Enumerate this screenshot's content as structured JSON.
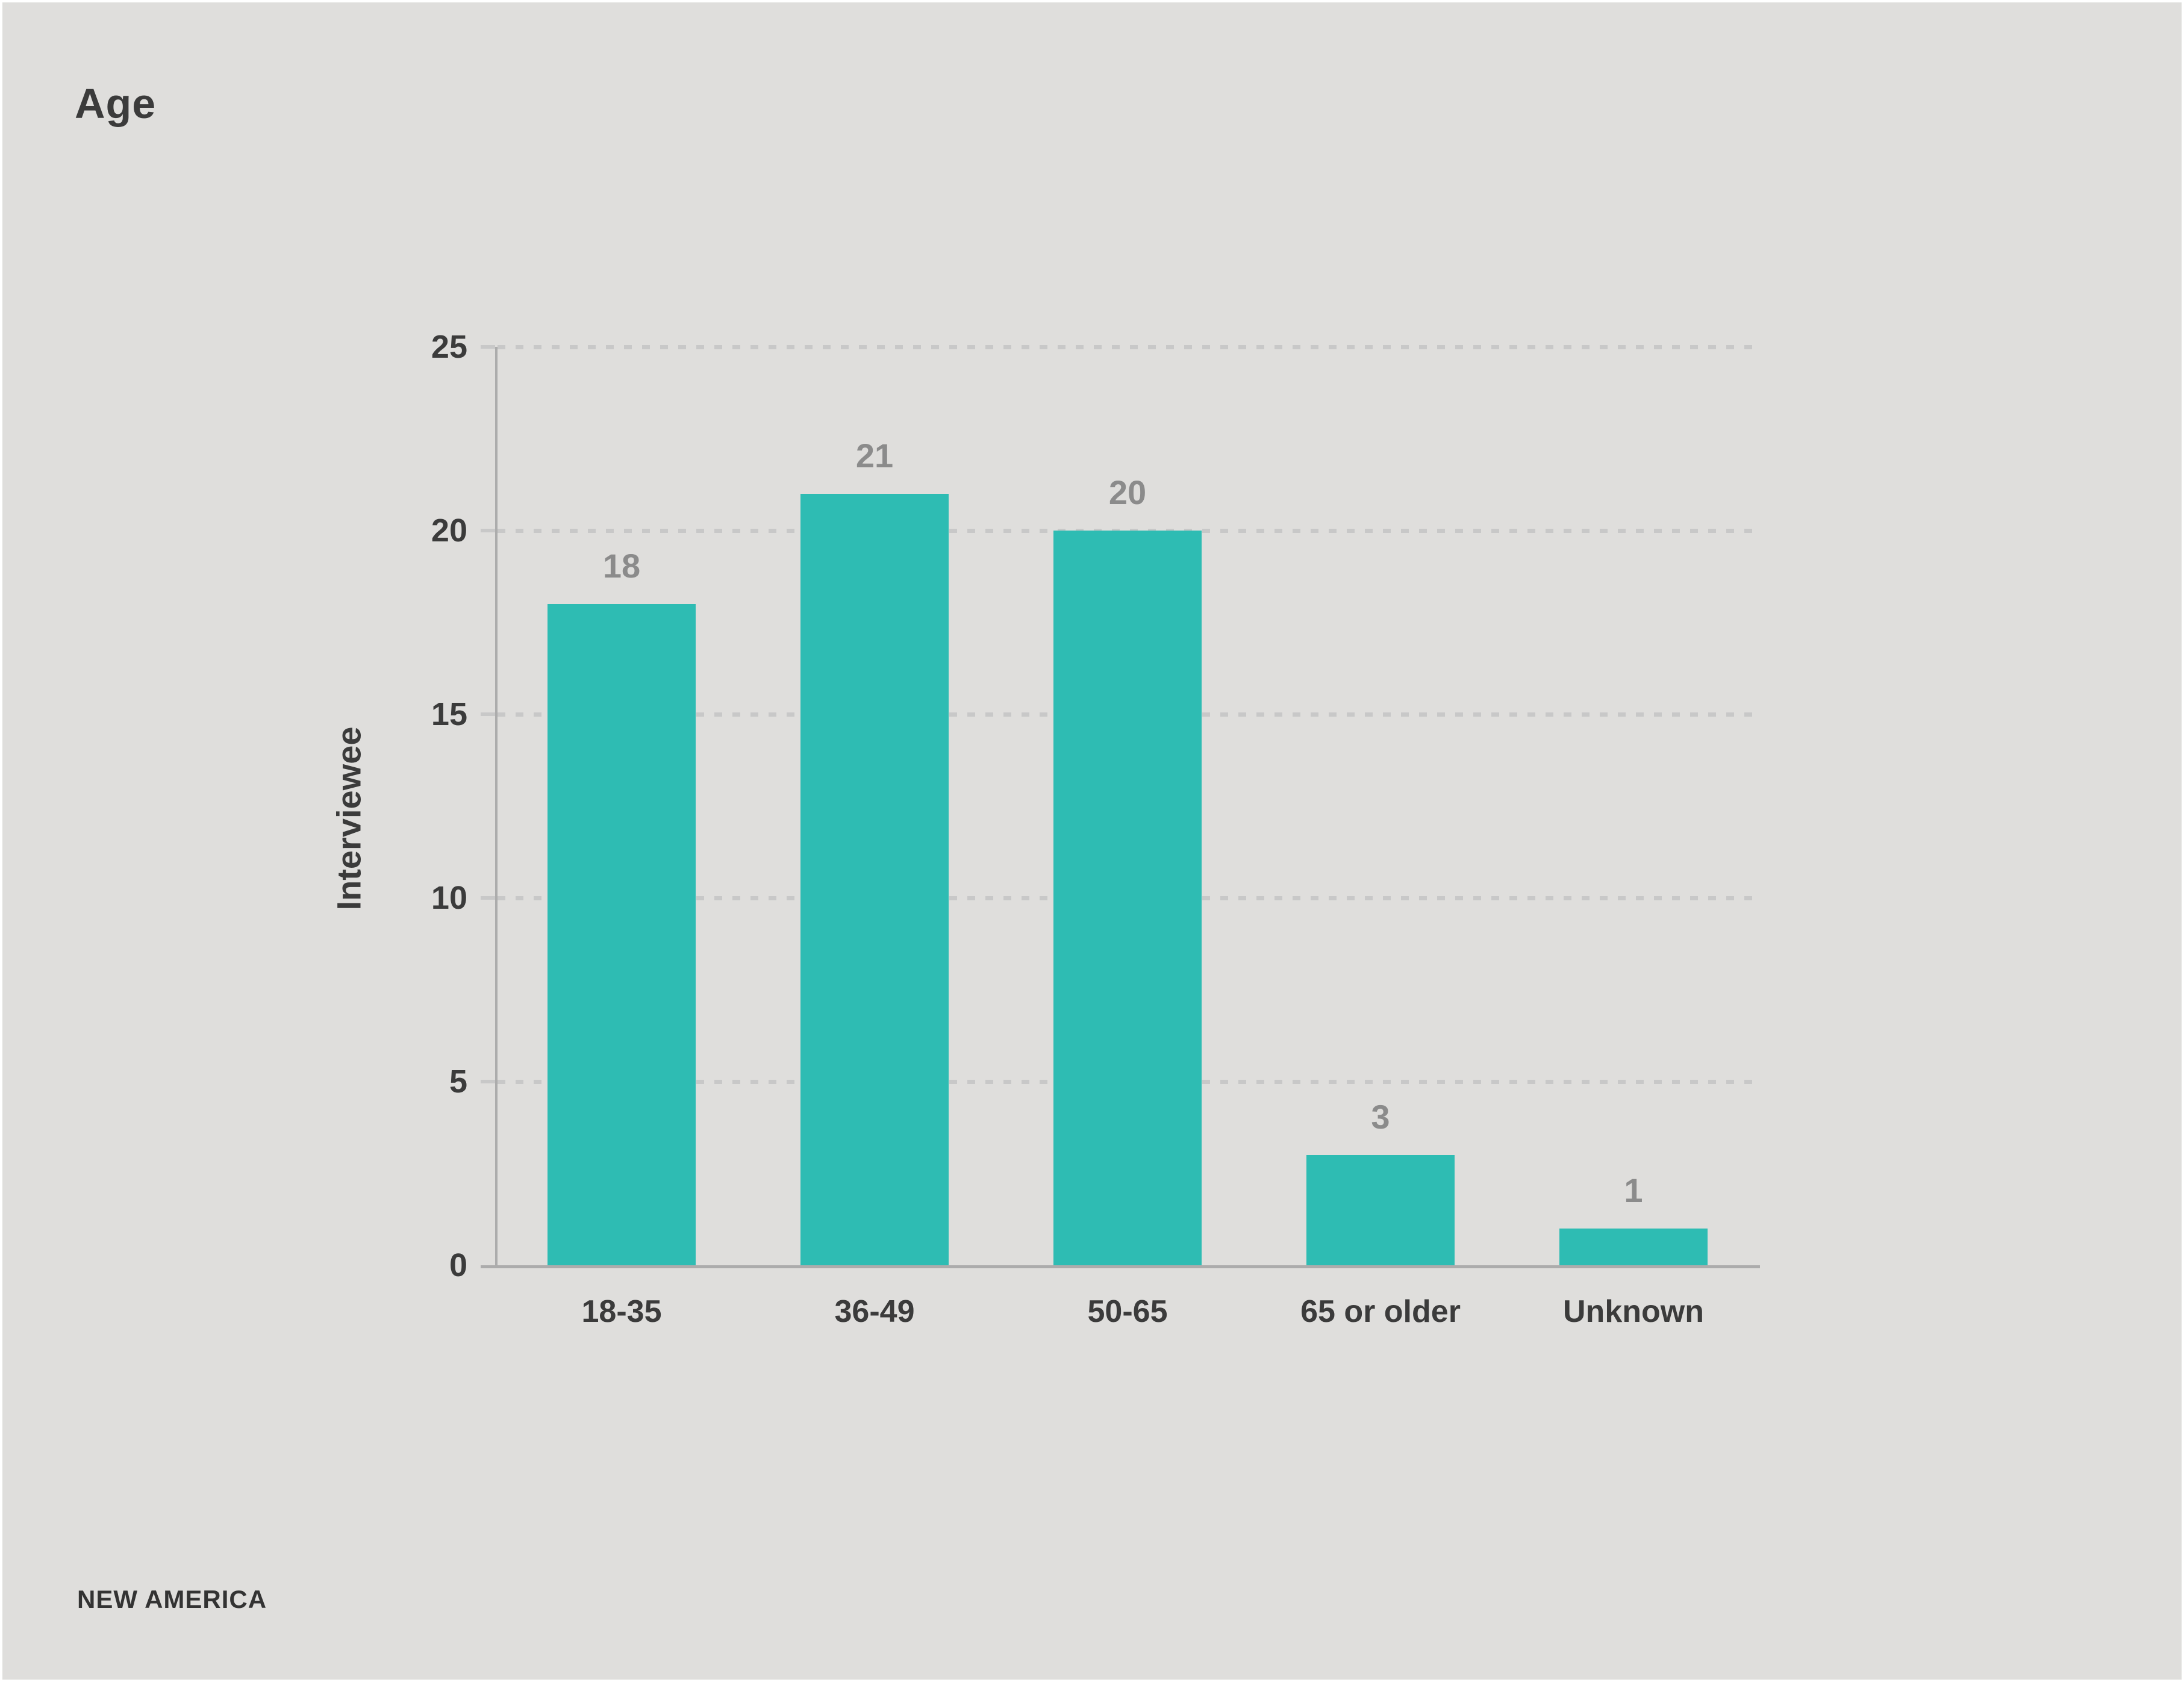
{
  "page": {
    "background_color": "#dfdedc",
    "frame_color": "#ffffff"
  },
  "header": {
    "title": "Age"
  },
  "footer": {
    "brand": "NEW AMERICA"
  },
  "chart_data": {
    "type": "bar",
    "title": "Age",
    "categories": [
      "18-35",
      "36-49",
      "50-65",
      "65 or older",
      "Unknown"
    ],
    "values": [
      18,
      21,
      20,
      3,
      1
    ],
    "xlabel": "",
    "ylabel": "Interviewee",
    "ylim": [
      0,
      25
    ],
    "yticks": [
      0,
      5,
      10,
      15,
      20,
      25
    ],
    "grid": "horizontal-dotted",
    "legend_position": "none",
    "bar_color": "#2ebcb3",
    "value_label_color": "#8b8b8b",
    "axis_text_color": "#3b3b3b",
    "axis_line_color": "#acacac",
    "gridline_color": "#c8c8c8"
  }
}
